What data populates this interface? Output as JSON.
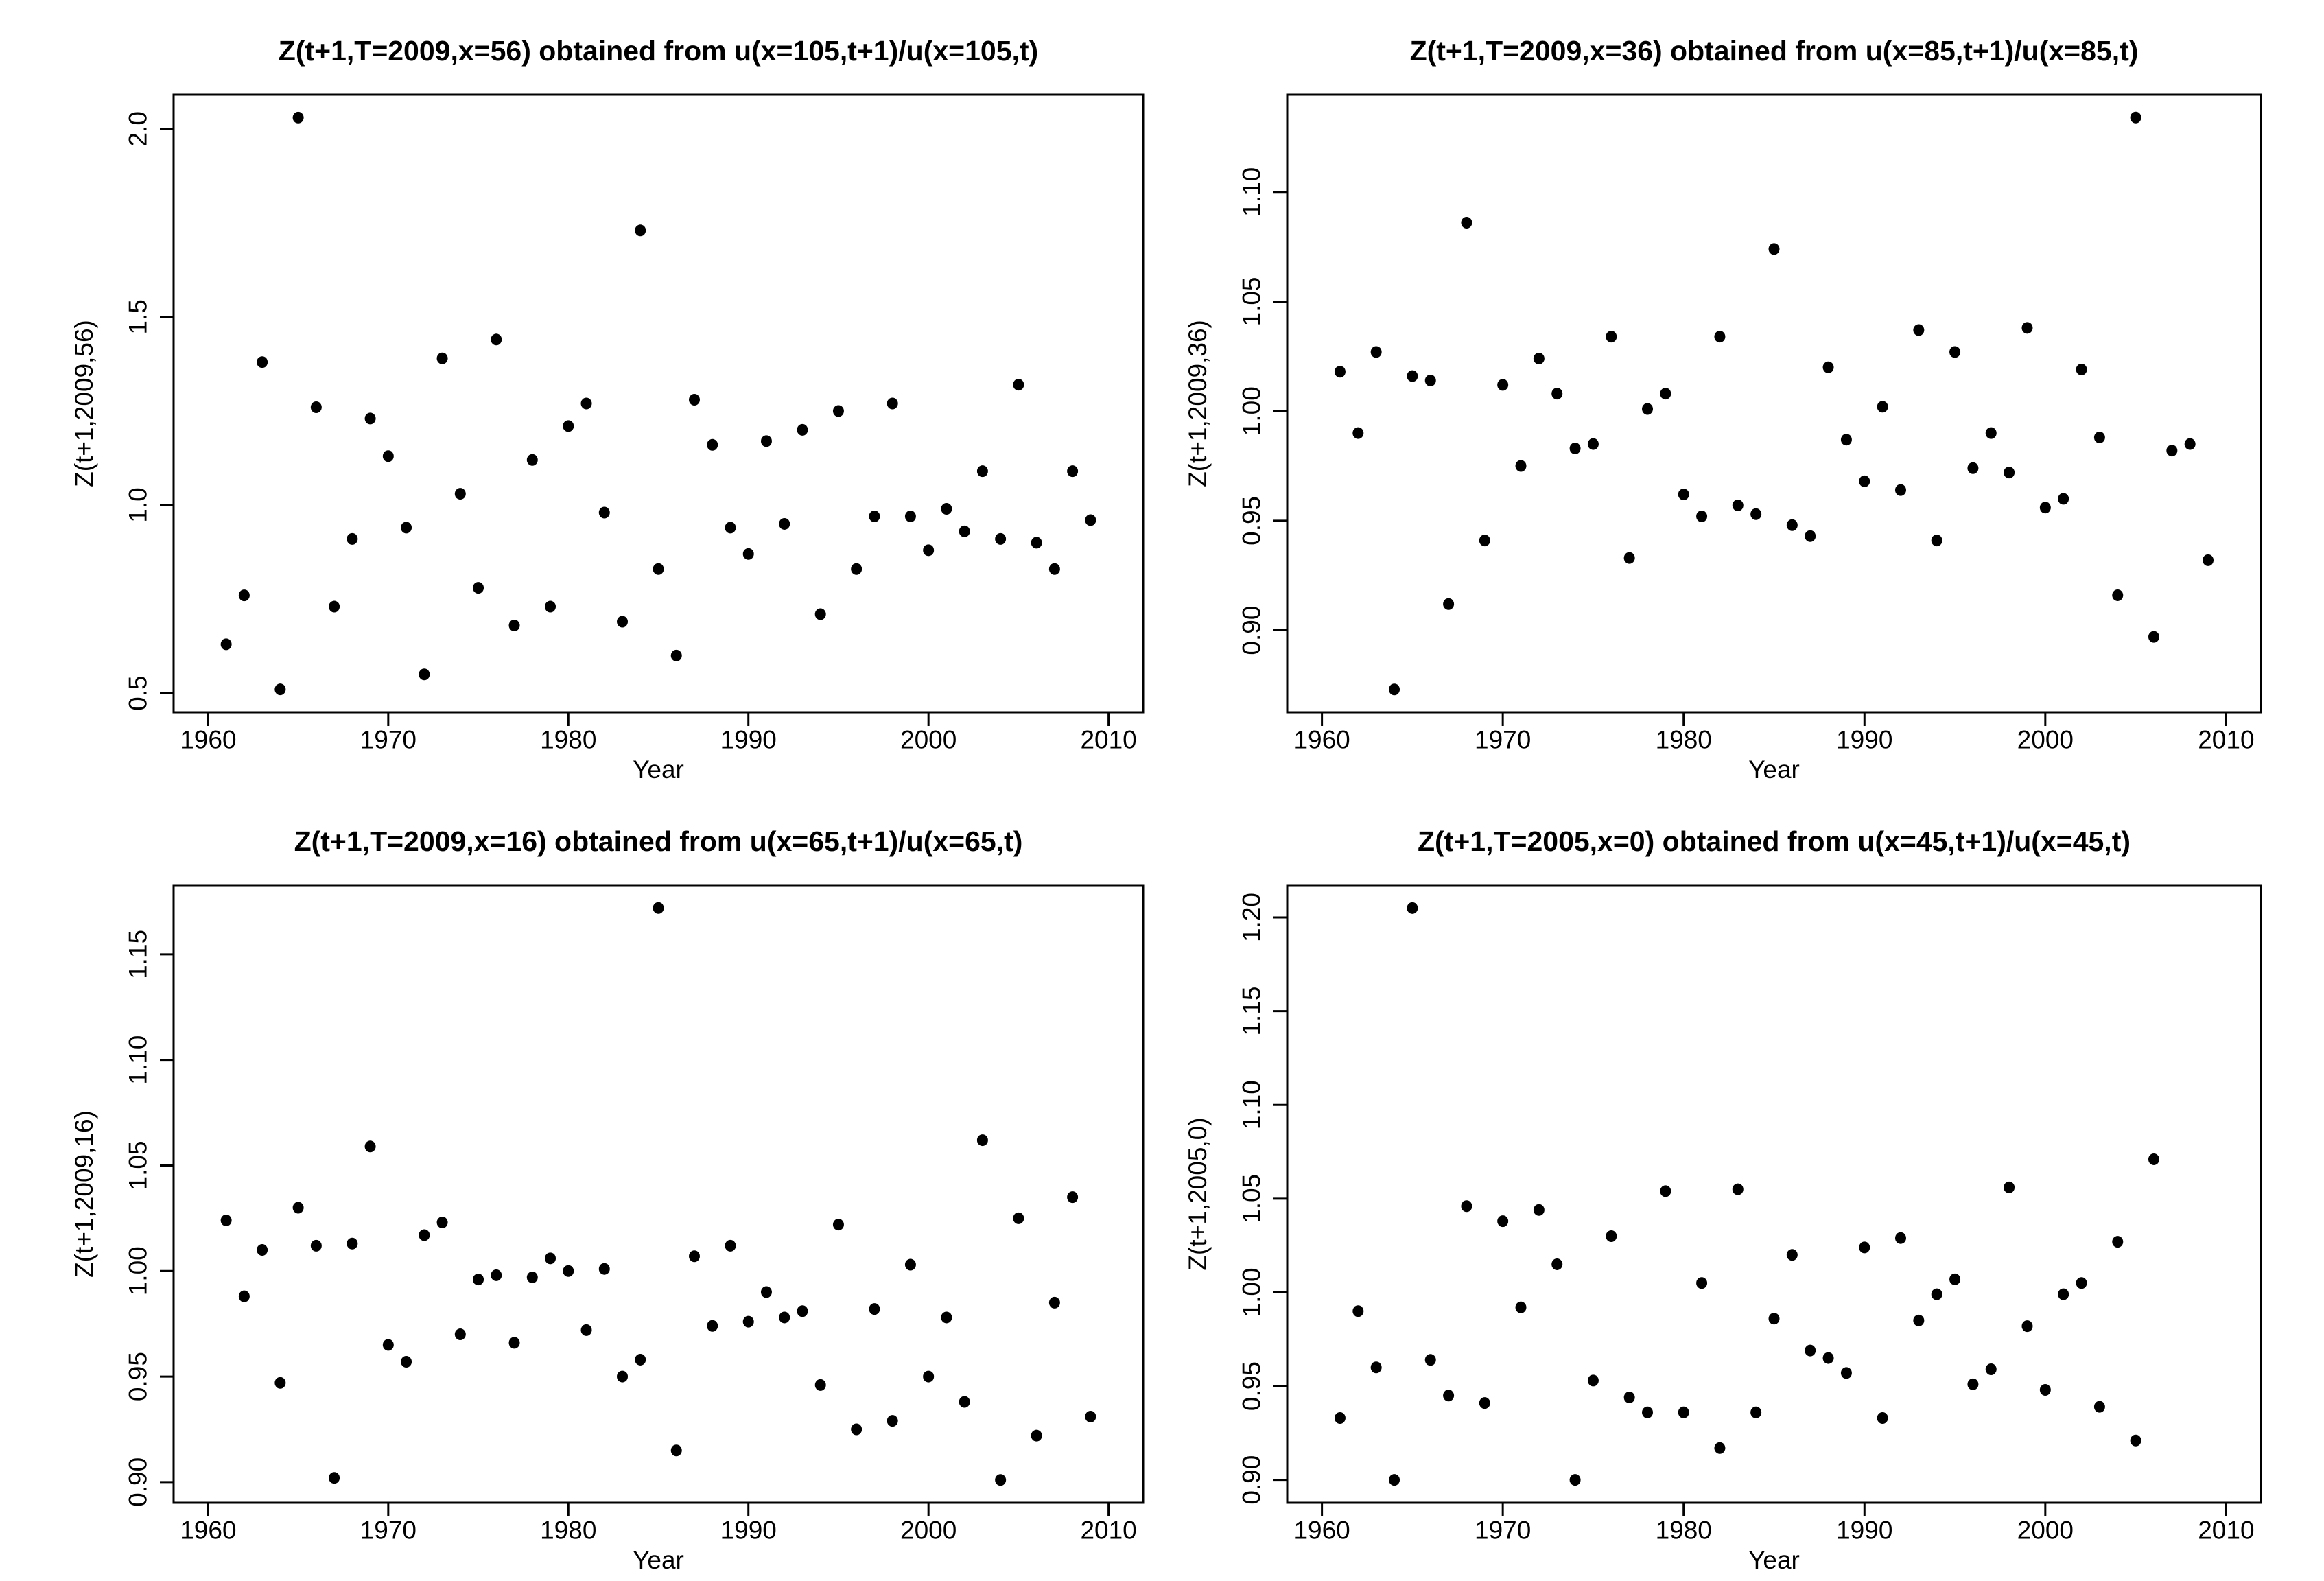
{
  "page": {
    "background_color": "#ffffff",
    "axis_color": "#000000",
    "text_color": "#000000",
    "point_color": "#000000"
  },
  "chart_data": [
    {
      "type": "scatter",
      "panel": "top-left",
      "title": "Z(t+1,T=2009,x=56) obtained from u(x=105,t+1)/u(x=105,t)",
      "xlabel": "Year",
      "ylabel": "Z(t+1,2009,56)",
      "xlim": [
        1958.08,
        2011.92
      ],
      "ylim": [
        0.4492,
        2.0908
      ],
      "grid": false,
      "legend": "none",
      "xtick_values": [
        1960,
        1970,
        1980,
        1990,
        2000,
        2010
      ],
      "xtick_labels": [
        "1960",
        "1970",
        "1980",
        "1990",
        "2000",
        "2010"
      ],
      "ytick_values": [
        0.5,
        1.0,
        1.5,
        2.0
      ],
      "ytick_labels": [
        "0.5",
        "1.0",
        "1.5",
        "2.0"
      ],
      "x": [
        1961,
        1962,
        1963,
        1964,
        1965,
        1966,
        1967,
        1968,
        1969,
        1970,
        1971,
        1972,
        1973,
        1974,
        1975,
        1976,
        1977,
        1978,
        1979,
        1980,
        1981,
        1982,
        1983,
        1984,
        1985,
        1986,
        1987,
        1988,
        1989,
        1990,
        1991,
        1992,
        1993,
        1994,
        1995,
        1996,
        1997,
        1998,
        1999,
        2000,
        2001,
        2002,
        2003,
        2004,
        2005,
        2006,
        2007,
        2008,
        2009
      ],
      "y": [
        0.63,
        0.76,
        1.38,
        0.51,
        2.03,
        1.26,
        0.73,
        0.91,
        1.23,
        1.13,
        0.94,
        0.55,
        1.39,
        1.03,
        0.78,
        1.44,
        0.68,
        1.12,
        0.73,
        1.21,
        1.27,
        0.98,
        0.69,
        1.73,
        0.83,
        0.6,
        1.28,
        1.16,
        0.94,
        0.87,
        1.17,
        0.95,
        1.2,
        0.71,
        1.25,
        0.83,
        0.97,
        1.27,
        0.97,
        0.88,
        0.99,
        0.93,
        1.09,
        0.91,
        1.32,
        0.9,
        0.83,
        1.09,
        0.96
      ]
    },
    {
      "type": "scatter",
      "panel": "top-right",
      "title": "Z(t+1,T=2009,x=36) obtained from u(x=85,t+1)/u(x=85,t)",
      "xlabel": "Year",
      "ylabel": "Z(t+1,2009,36)",
      "xlim": [
        1958.08,
        2011.92
      ],
      "ylim": [
        0.8626,
        1.1444
      ],
      "grid": false,
      "legend": "none",
      "xtick_values": [
        1960,
        1970,
        1980,
        1990,
        2000,
        2010
      ],
      "xtick_labels": [
        "1960",
        "1970",
        "1980",
        "1990",
        "2000",
        "2010"
      ],
      "ytick_values": [
        0.9,
        0.95,
        1.0,
        1.05,
        1.1
      ],
      "ytick_labels": [
        "0.90",
        "0.95",
        "1.00",
        "1.05",
        "1.10"
      ],
      "x": [
        1961,
        1962,
        1963,
        1964,
        1965,
        1966,
        1967,
        1968,
        1969,
        1970,
        1971,
        1972,
        1973,
        1974,
        1975,
        1976,
        1977,
        1978,
        1979,
        1980,
        1981,
        1982,
        1983,
        1984,
        1985,
        1986,
        1987,
        1988,
        1989,
        1990,
        1991,
        1992,
        1993,
        1994,
        1995,
        1996,
        1997,
        1998,
        1999,
        2000,
        2001,
        2002,
        2003,
        2004,
        2005,
        2006,
        2007,
        2008,
        2009
      ],
      "y": [
        1.018,
        0.99,
        1.027,
        0.873,
        1.016,
        1.014,
        0.912,
        1.086,
        0.941,
        1.012,
        0.975,
        1.024,
        1.008,
        0.983,
        0.985,
        1.034,
        0.933,
        1.001,
        1.008,
        0.962,
        0.952,
        1.034,
        0.957,
        0.953,
        1.074,
        0.948,
        0.943,
        1.02,
        0.987,
        0.968,
        1.002,
        0.964,
        1.037,
        0.941,
        1.027,
        0.974,
        0.99,
        0.972,
        1.038,
        0.956,
        0.96,
        1.019,
        0.988,
        0.916,
        1.134,
        0.897,
        0.982,
        0.985,
        0.932
      ]
    },
    {
      "type": "scatter",
      "panel": "bottom-left",
      "title": "Z(t+1,T=2009,x=16) obtained from u(x=65,t+1)/u(x=65,t)",
      "xlabel": "Year",
      "ylabel": "Z(t+1,2009,16)",
      "xlim": [
        1958.08,
        2011.92
      ],
      "ylim": [
        0.8902,
        1.1828
      ],
      "grid": false,
      "legend": "none",
      "xtick_values": [
        1960,
        1970,
        1980,
        1990,
        2000,
        2010
      ],
      "xtick_labels": [
        "1960",
        "1970",
        "1980",
        "1990",
        "2000",
        "2010"
      ],
      "ytick_values": [
        0.9,
        0.95,
        1.0,
        1.05,
        1.1,
        1.15
      ],
      "ytick_labels": [
        "0.90",
        "0.95",
        "1.00",
        "1.05",
        "1.10",
        "1.15"
      ],
      "x": [
        1961,
        1962,
        1963,
        1964,
        1965,
        1966,
        1967,
        1968,
        1969,
        1970,
        1971,
        1972,
        1973,
        1974,
        1975,
        1976,
        1977,
        1978,
        1979,
        1980,
        1981,
        1982,
        1983,
        1984,
        1985,
        1986,
        1987,
        1988,
        1989,
        1990,
        1991,
        1992,
        1993,
        1994,
        1995,
        1996,
        1997,
        1998,
        1999,
        2000,
        2001,
        2002,
        2003,
        2004,
        2005,
        2006,
        2007,
        2008,
        2009
      ],
      "y": [
        1.024,
        0.988,
        1.01,
        0.947,
        1.03,
        1.012,
        0.902,
        1.013,
        1.059,
        0.965,
        0.957,
        1.017,
        1.023,
        0.97,
        0.996,
        0.998,
        0.966,
        0.997,
        1.006,
        1.0,
        0.972,
        1.001,
        0.95,
        0.958,
        1.172,
        0.915,
        1.007,
        0.974,
        1.012,
        0.976,
        0.99,
        0.978,
        0.981,
        0.946,
        1.022,
        0.925,
        0.982,
        0.929,
        1.003,
        0.95,
        0.978,
        0.938,
        1.062,
        0.901,
        1.025,
        0.922,
        0.985,
        1.035,
        0.931
      ]
    },
    {
      "type": "scatter",
      "panel": "bottom-right",
      "title": "Z(t+1,T=2005,x=0) obtained from u(x=45,t+1)/u(x=45,t)",
      "xlabel": "Year",
      "ylabel": "Z(t+1,2005,0)",
      "xlim": [
        1958.08,
        2011.92
      ],
      "ylim": [
        0.8878,
        1.2172
      ],
      "grid": false,
      "legend": "none",
      "xtick_values": [
        1960,
        1970,
        1980,
        1990,
        2000,
        2010
      ],
      "xtick_labels": [
        "1960",
        "1970",
        "1980",
        "1990",
        "2000",
        "2010"
      ],
      "ytick_values": [
        0.9,
        0.95,
        1.0,
        1.05,
        1.1,
        1.15,
        1.2
      ],
      "ytick_labels": [
        "0.90",
        "0.95",
        "1.00",
        "1.05",
        "1.10",
        "1.15",
        "1.20"
      ],
      "x": [
        1961,
        1962,
        1963,
        1964,
        1965,
        1966,
        1967,
        1968,
        1969,
        1970,
        1971,
        1972,
        1973,
        1974,
        1975,
        1976,
        1977,
        1978,
        1979,
        1980,
        1981,
        1982,
        1983,
        1984,
        1985,
        1986,
        1987,
        1988,
        1989,
        1990,
        1991,
        1992,
        1993,
        1994,
        1995,
        1996,
        1997,
        1998,
        1999,
        2000,
        2001,
        2002,
        2003,
        2004,
        2005,
        2006
      ],
      "y": [
        0.933,
        0.99,
        0.96,
        0.9,
        1.205,
        0.964,
        0.945,
        1.046,
        0.941,
        1.038,
        0.992,
        1.044,
        1.015,
        0.9,
        0.953,
        1.03,
        0.944,
        0.936,
        1.054,
        0.936,
        1.005,
        0.917,
        1.055,
        0.936,
        0.986,
        1.02,
        0.969,
        0.965,
        0.957,
        1.024,
        0.933,
        1.029,
        0.985,
        0.999,
        1.007,
        0.951,
        0.959,
        1.056,
        0.982,
        0.948,
        0.999,
        1.005,
        0.939,
        1.027,
        0.921,
        1.071
      ]
    }
  ]
}
